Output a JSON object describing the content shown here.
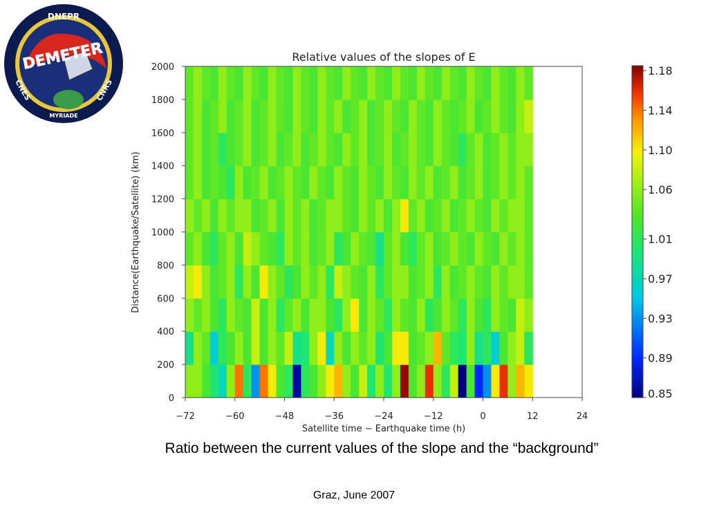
{
  "logo": {
    "top_text": "DNEPR",
    "title_text": "DEMETER",
    "left_text": "CNES",
    "right_text": "CNRS",
    "bottom_text": "MYRIADE"
  },
  "chart_data": {
    "type": "heatmap",
    "title": "Relative values of the slopes of E",
    "xlabel": "Satellite time − Earthquake time (h)",
    "ylabel": "Distance(Earthquake/Satellite) (km)",
    "xlim": [
      -72,
      24
    ],
    "ylim": [
      0,
      2000
    ],
    "x_ticks": [
      -72,
      -60,
      -48,
      -36,
      -24,
      -12,
      0,
      12,
      24
    ],
    "x_tick_labels": [
      "−72",
      "−60",
      "−48",
      "−36",
      "−24",
      "−12",
      "0",
      "12",
      "24"
    ],
    "y_ticks": [
      0,
      200,
      400,
      600,
      800,
      1000,
      1200,
      1400,
      1600,
      1800,
      2000
    ],
    "y_tick_labels": [
      "0",
      "200",
      "400",
      "600",
      "800",
      "1000",
      "1200",
      "1400",
      "1600",
      "1800",
      "2000"
    ],
    "x_bin_hours": 2,
    "y_bin_km": 200,
    "colorbar": {
      "min": 0.85,
      "max": 1.185,
      "tick_values": [
        1.18,
        1.14,
        1.1,
        1.06,
        1.01,
        0.97,
        0.93,
        0.89,
        0.85
      ],
      "tick_labels": [
        "1.18",
        "1.14",
        "1.10",
        "1.06",
        "1.01",
        "0.97",
        "0.93",
        "0.89",
        "0.85"
      ]
    },
    "z_rows_from_bottom": [
      [
        1.06,
        1.06,
        1.03,
        1.0,
        0.97,
        1.06,
        1.14,
        1.01,
        0.93,
        1.14,
        1.1,
        1.03,
        1.01,
        0.86,
        1.01,
        1.03,
        1.06,
        1.1,
        1.12,
        1.06,
        1.03,
        1.08,
        1.0,
        1.06,
        1.0,
        1.06,
        1.18,
        1.03,
        1.06,
        1.16,
        1.06,
        1.01,
        1.08,
        0.85,
        1.03,
        0.89,
        0.93,
        1.1,
        1.16,
        1.06,
        1.12,
        1.1
      ],
      [
        0.99,
        1.06,
        1.04,
        0.96,
        1.01,
        1.03,
        1.06,
        1.03,
        1.08,
        1.03,
        1.06,
        1.04,
        1.08,
        0.99,
        1.0,
        1.06,
        1.1,
        0.97,
        1.06,
        1.03,
        1.06,
        1.04,
        1.06,
        1.0,
        1.03,
        1.1,
        1.1,
        1.03,
        1.04,
        1.06,
        1.12,
        1.04,
        1.01,
        1.0,
        1.06,
        0.99,
        1.01,
        0.96,
        1.03,
        1.06,
        1.08,
        1.01
      ],
      [
        1.06,
        1.04,
        1.06,
        1.03,
        1.01,
        1.06,
        1.04,
        1.03,
        1.08,
        1.03,
        1.06,
        1.01,
        1.04,
        1.06,
        1.03,
        1.06,
        1.06,
        1.03,
        1.01,
        1.06,
        1.1,
        1.03,
        1.06,
        1.04,
        1.01,
        1.06,
        1.04,
        1.03,
        1.06,
        1.01,
        1.03,
        1.06,
        1.04,
        1.01,
        1.06,
        1.03,
        1.01,
        1.06,
        1.04,
        1.03,
        1.08,
        1.06
      ],
      [
        1.08,
        1.1,
        1.06,
        1.03,
        1.04,
        1.06,
        1.01,
        1.06,
        1.03,
        1.1,
        1.06,
        1.04,
        1.01,
        1.03,
        1.06,
        1.04,
        1.06,
        1.01,
        1.08,
        1.06,
        1.04,
        1.03,
        1.06,
        1.01,
        1.04,
        1.06,
        1.06,
        1.03,
        1.04,
        1.06,
        1.01,
        1.06,
        1.03,
        1.04,
        1.06,
        1.04,
        1.03,
        1.06,
        1.04,
        1.06,
        1.06,
        1.04
      ],
      [
        1.04,
        1.06,
        1.03,
        1.01,
        1.04,
        1.06,
        1.03,
        1.08,
        1.06,
        1.04,
        1.03,
        1.01,
        1.06,
        1.04,
        1.06,
        1.03,
        1.04,
        1.06,
        1.01,
        1.03,
        1.06,
        1.04,
        1.03,
        0.99,
        1.04,
        1.06,
        1.03,
        1.01,
        1.04,
        1.06,
        1.03,
        1.04,
        1.06,
        1.04,
        1.03,
        1.06,
        1.04,
        1.03,
        1.06,
        1.04,
        1.06,
        1.04
      ],
      [
        1.06,
        1.04,
        1.06,
        1.03,
        1.06,
        1.04,
        1.06,
        1.06,
        1.03,
        1.04,
        1.06,
        1.03,
        1.06,
        1.04,
        1.06,
        1.03,
        1.04,
        1.06,
        1.06,
        1.04,
        1.03,
        1.06,
        1.04,
        1.06,
        1.03,
        1.06,
        1.1,
        1.04,
        1.06,
        1.03,
        1.04,
        1.06,
        1.03,
        1.04,
        1.06,
        1.04,
        1.03,
        1.06,
        1.04,
        1.06,
        1.06,
        1.04
      ],
      [
        1.04,
        1.06,
        1.03,
        1.04,
        1.03,
        1.01,
        1.06,
        1.03,
        1.04,
        1.06,
        1.03,
        1.04,
        1.06,
        1.04,
        1.03,
        1.06,
        1.04,
        1.03,
        1.06,
        1.04,
        1.03,
        1.06,
        1.04,
        1.03,
        1.06,
        1.04,
        1.03,
        1.06,
        1.04,
        1.06,
        1.03,
        1.04,
        1.06,
        1.03,
        1.04,
        1.06,
        1.03,
        1.04,
        1.06,
        1.04,
        1.06,
        1.04
      ],
      [
        1.04,
        1.06,
        1.03,
        1.04,
        1.01,
        1.03,
        1.04,
        1.06,
        1.03,
        1.04,
        1.06,
        1.03,
        1.04,
        1.06,
        1.03,
        1.04,
        1.06,
        1.04,
        1.03,
        1.06,
        1.04,
        1.06,
        1.03,
        1.04,
        1.06,
        1.03,
        1.04,
        1.06,
        1.04,
        1.03,
        1.06,
        1.04,
        1.03,
        1.01,
        1.04,
        1.06,
        1.03,
        1.04,
        1.06,
        1.04,
        1.06,
        1.06
      ],
      [
        1.04,
        1.06,
        1.03,
        1.04,
        1.06,
        1.03,
        1.04,
        1.06,
        1.03,
        1.04,
        1.06,
        1.04,
        1.03,
        1.06,
        1.04,
        1.03,
        1.06,
        1.04,
        1.06,
        1.03,
        1.04,
        1.06,
        1.03,
        1.04,
        1.06,
        1.04,
        1.03,
        1.06,
        1.04,
        1.03,
        1.06,
        1.04,
        1.03,
        1.04,
        1.06,
        1.03,
        1.04,
        1.06,
        1.04,
        1.03,
        1.06,
        1.08
      ],
      [
        1.04,
        1.06,
        1.04,
        1.03,
        1.06,
        1.04,
        1.03,
        1.06,
        1.04,
        1.03,
        1.06,
        1.04,
        1.03,
        1.06,
        1.04,
        1.03,
        1.06,
        1.04,
        1.03,
        1.06,
        1.04,
        1.03,
        1.06,
        1.04,
        1.03,
        1.06,
        1.04,
        1.03,
        1.06,
        1.04,
        1.03,
        1.06,
        1.04,
        1.03,
        1.06,
        1.04,
        1.03,
        1.06,
        1.04,
        1.03,
        1.06,
        1.04
      ]
    ]
  },
  "caption": {
    "main": "Ratio between the current values of the slope and the “background”",
    "footer": "Graz, June 2007"
  }
}
